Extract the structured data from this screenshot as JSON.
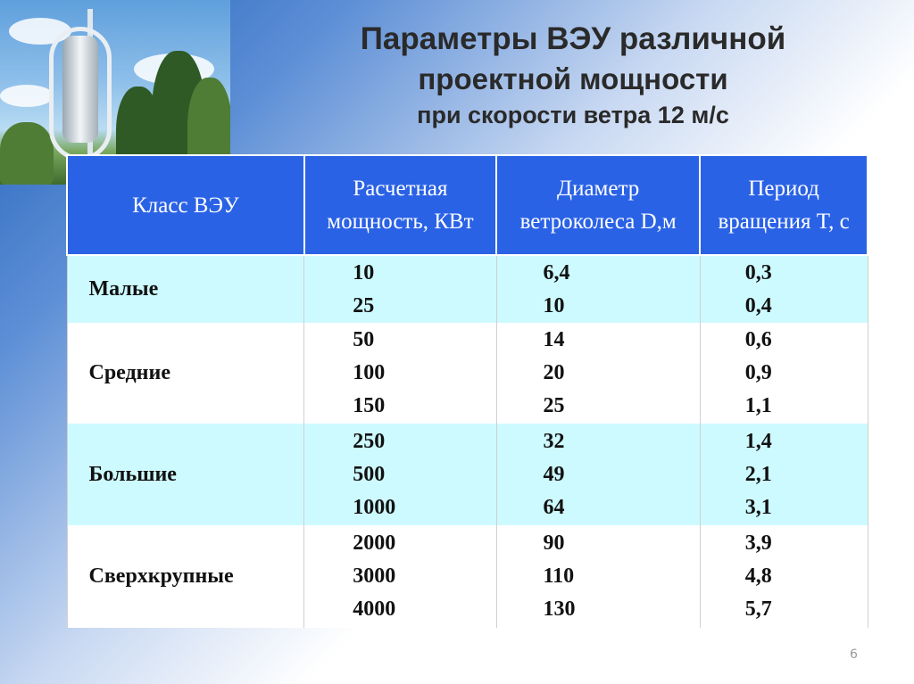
{
  "title": {
    "line1": "Параметры ВЭУ  различной",
    "line2": "проектной мощности",
    "line3": "при скорости ветра 12 м/с"
  },
  "table": {
    "headers": [
      [
        "Класс ВЭУ"
      ],
      [
        "Расчетная",
        "мощность,",
        "КВт"
      ],
      [
        "Диаметр",
        "ветроколеса",
        "D,м"
      ],
      [
        "Период",
        "вращения",
        "T, с"
      ]
    ],
    "rows": [
      {
        "class": "Малые",
        "power": [
          "10",
          "25"
        ],
        "diameter": [
          "6,4",
          "10"
        ],
        "period": [
          "0,3",
          "0,4"
        ]
      },
      {
        "class": "Средние",
        "power": [
          "50",
          "100",
          "150"
        ],
        "diameter": [
          "14",
          "20",
          "25"
        ],
        "period": [
          "0,6",
          "0,9",
          "1,1"
        ]
      },
      {
        "class": "Большие",
        "power": [
          "250",
          "500",
          "1000"
        ],
        "diameter": [
          "32",
          "49",
          "64"
        ],
        "period": [
          "1,4",
          "2,1",
          "3,1"
        ]
      },
      {
        "class": "Сверхкрупные",
        "power": [
          "2000",
          "3000",
          "4000"
        ],
        "diameter": [
          "90",
          "110",
          "130"
        ],
        "period": [
          "3,9",
          "4,8",
          "5,7"
        ]
      }
    ]
  },
  "page_number": "6",
  "colors": {
    "header_bg": "#2a62e6",
    "row_alt_bg": "#cdfaff",
    "title_text": "#2a2a2a"
  }
}
